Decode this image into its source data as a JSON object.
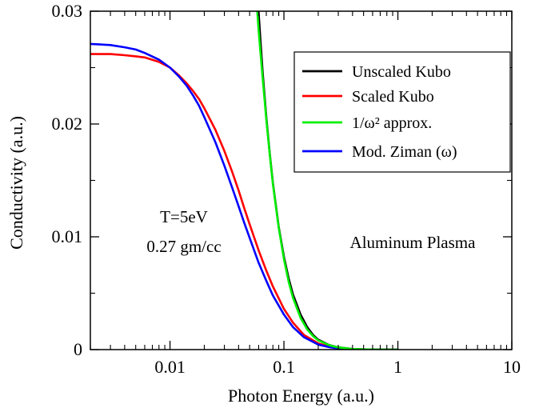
{
  "chart_data": {
    "type": "line",
    "title": "",
    "xlabel": "Photon Energy (a.u.)",
    "ylabel": "Conductivity (a.u.)",
    "xscale": "log",
    "xlim": [
      0.002,
      10
    ],
    "ylim": [
      0,
      0.03
    ],
    "x_ticks": [
      {
        "value": 0.01,
        "label": "0.01"
      },
      {
        "value": 0.1,
        "label": "0.1"
      },
      {
        "value": 1,
        "label": "1"
      },
      {
        "value": 10,
        "label": "10"
      }
    ],
    "y_ticks": [
      {
        "value": 0,
        "label": "0"
      },
      {
        "value": 0.01,
        "label": "0.01"
      },
      {
        "value": 0.02,
        "label": "0.02"
      },
      {
        "value": 0.03,
        "label": "0.03"
      }
    ],
    "grid": false,
    "legend_position": "top-right",
    "annotations": [
      {
        "text": "T=5eV"
      },
      {
        "text": "0.27 gm/cc"
      },
      {
        "text": "Aluminum Plasma"
      }
    ],
    "series": [
      {
        "name": "Unscaled Kubo",
        "color": "#000000",
        "x": [
          0.0596,
          0.062,
          0.065,
          0.07,
          0.075,
          0.08,
          0.09,
          0.1,
          0.11,
          0.12,
          0.14,
          0.16,
          0.18,
          0.2,
          0.25,
          0.3,
          0.4,
          0.5,
          0.6,
          0.8,
          1.0
        ],
        "y": [
          0.0303,
          0.0276,
          0.0246,
          0.0206,
          0.0174,
          0.0148,
          0.0109,
          0.0082,
          0.0063,
          0.0049,
          0.0031,
          0.002,
          0.0013,
          0.00088,
          0.0004,
          0.0002,
          6e-05,
          2e-05,
          1e-05,
          0.0,
          0.0
        ]
      },
      {
        "name": "Scaled Kubo",
        "color": "#ff0000",
        "x": [
          0.002,
          0.003,
          0.004,
          0.005,
          0.006,
          0.008,
          0.01,
          0.012,
          0.014,
          0.016,
          0.018,
          0.02,
          0.025,
          0.03,
          0.035,
          0.04,
          0.045,
          0.05,
          0.06,
          0.07,
          0.08,
          0.1,
          0.12,
          0.15,
          0.2,
          0.25,
          0.3,
          0.4,
          0.5,
          0.6,
          0.8,
          1.0
        ],
        "y": [
          0.0262,
          0.0262,
          0.0261,
          0.026,
          0.0259,
          0.0255,
          0.025,
          0.0243,
          0.0236,
          0.0229,
          0.0222,
          0.0214,
          0.0195,
          0.0176,
          0.0158,
          0.0141,
          0.0125,
          0.0111,
          0.0088,
          0.007,
          0.0056,
          0.0036,
          0.0024,
          0.0013,
          0.00055,
          0.00026,
          0.00013,
          4e-05,
          1e-05,
          0.0,
          0.0,
          0.0
        ]
      },
      {
        "name": "1/ω² approx.",
        "color": "#00ee00",
        "x": [
          0.058,
          0.06,
          0.062,
          0.065,
          0.07,
          0.075,
          0.08,
          0.09,
          0.1,
          0.11,
          0.12,
          0.14,
          0.16,
          0.18,
          0.2,
          0.25,
          0.3,
          0.4,
          0.5,
          0.6,
          0.8,
          1.0
        ],
        "y": [
          0.0303,
          0.0283,
          0.0265,
          0.0241,
          0.0204,
          0.0173,
          0.0147,
          0.0108,
          0.008,
          0.006,
          0.0046,
          0.0028,
          0.0018,
          0.0012,
          0.00082,
          0.00038,
          0.00019,
          6e-05,
          2e-05,
          1e-05,
          0.0,
          0.0
        ]
      },
      {
        "name": "Mod. Ziman (ω)",
        "color": "#0000ff",
        "x": [
          0.002,
          0.003,
          0.004,
          0.005,
          0.006,
          0.008,
          0.01,
          0.012,
          0.014,
          0.016,
          0.018,
          0.02,
          0.025,
          0.03,
          0.035,
          0.04,
          0.045,
          0.05,
          0.06,
          0.07,
          0.08,
          0.1,
          0.12,
          0.15,
          0.2,
          0.25,
          0.3,
          0.4,
          0.5,
          0.6,
          0.8,
          1.0
        ],
        "y": [
          0.0271,
          0.027,
          0.0268,
          0.0266,
          0.0263,
          0.0257,
          0.025,
          0.0242,
          0.0234,
          0.0225,
          0.0216,
          0.0206,
          0.0184,
          0.0163,
          0.0144,
          0.0127,
          0.0112,
          0.0099,
          0.0077,
          0.0061,
          0.0048,
          0.0031,
          0.002,
          0.0011,
          0.00045,
          0.00021,
          0.0001,
          3e-05,
          1e-05,
          0.0,
          0.0,
          0.0
        ]
      }
    ]
  }
}
